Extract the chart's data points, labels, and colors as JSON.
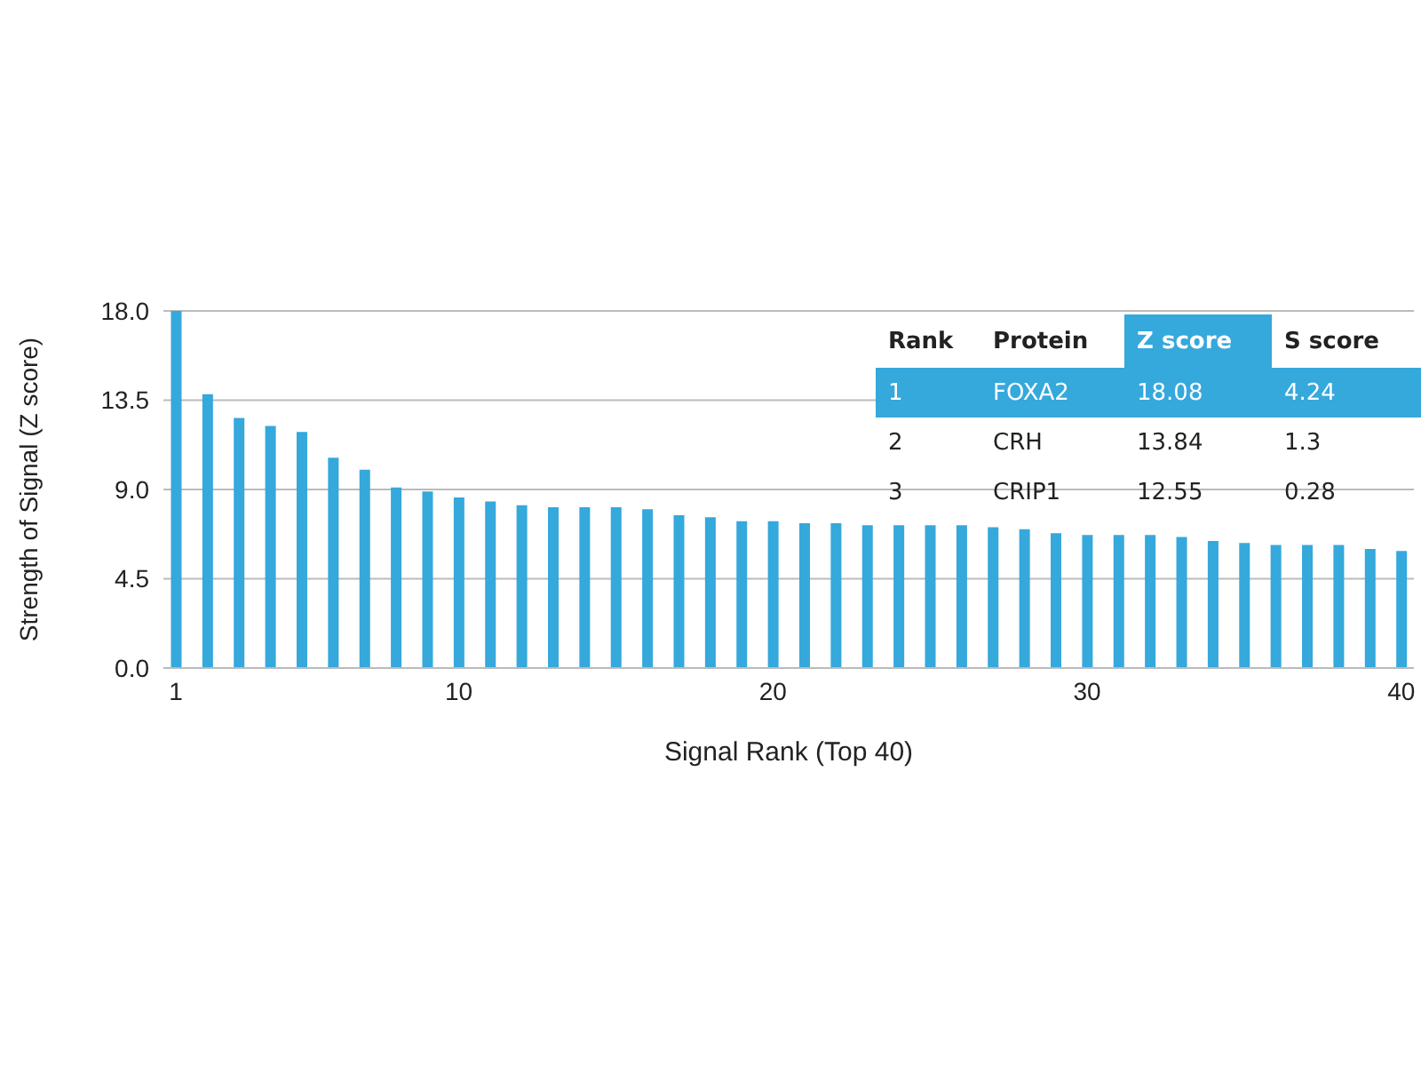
{
  "chart_data": {
    "type": "bar",
    "xlabel": "Signal Rank (Top 40)",
    "ylabel": "Strength of Signal (Z score)",
    "x": [
      1,
      2,
      3,
      4,
      5,
      6,
      7,
      8,
      9,
      10,
      11,
      12,
      13,
      14,
      15,
      16,
      17,
      18,
      19,
      20,
      21,
      22,
      23,
      24,
      25,
      26,
      27,
      28,
      29,
      30,
      31,
      32,
      33,
      34,
      35,
      36,
      37,
      38,
      39,
      40
    ],
    "values": [
      18.0,
      13.8,
      12.6,
      12.2,
      11.9,
      10.6,
      10.0,
      9.1,
      8.9,
      8.6,
      8.4,
      8.2,
      8.1,
      8.1,
      8.1,
      8.0,
      7.7,
      7.6,
      7.4,
      7.4,
      7.3,
      7.3,
      7.2,
      7.2,
      7.2,
      7.2,
      7.1,
      7.0,
      6.8,
      6.7,
      6.7,
      6.7,
      6.6,
      6.4,
      6.3,
      6.2,
      6.2,
      6.2,
      6.0,
      5.9
    ],
    "color": "#35a8dc",
    "xlim": [
      0.6,
      40.4
    ],
    "xticks": [
      1,
      10,
      20,
      30,
      40
    ],
    "ylim": [
      0,
      18
    ],
    "yticks": [
      {
        "value": 0,
        "label": "0.0"
      },
      4.5,
      {
        "value": 9,
        "label": "9.0"
      },
      13.5,
      {
        "value": 18,
        "label": "18.0"
      }
    ],
    "grid": "y",
    "legend": false,
    "annotations": [
      "Rank",
      "Protein",
      "Z score",
      "S score",
      "1",
      "FOXA2",
      "18.08",
      "4.24",
      "2",
      "CRH",
      "13.84",
      "1.3",
      "3",
      "CRIP1",
      "12.55",
      "0.28"
    ]
  }
}
